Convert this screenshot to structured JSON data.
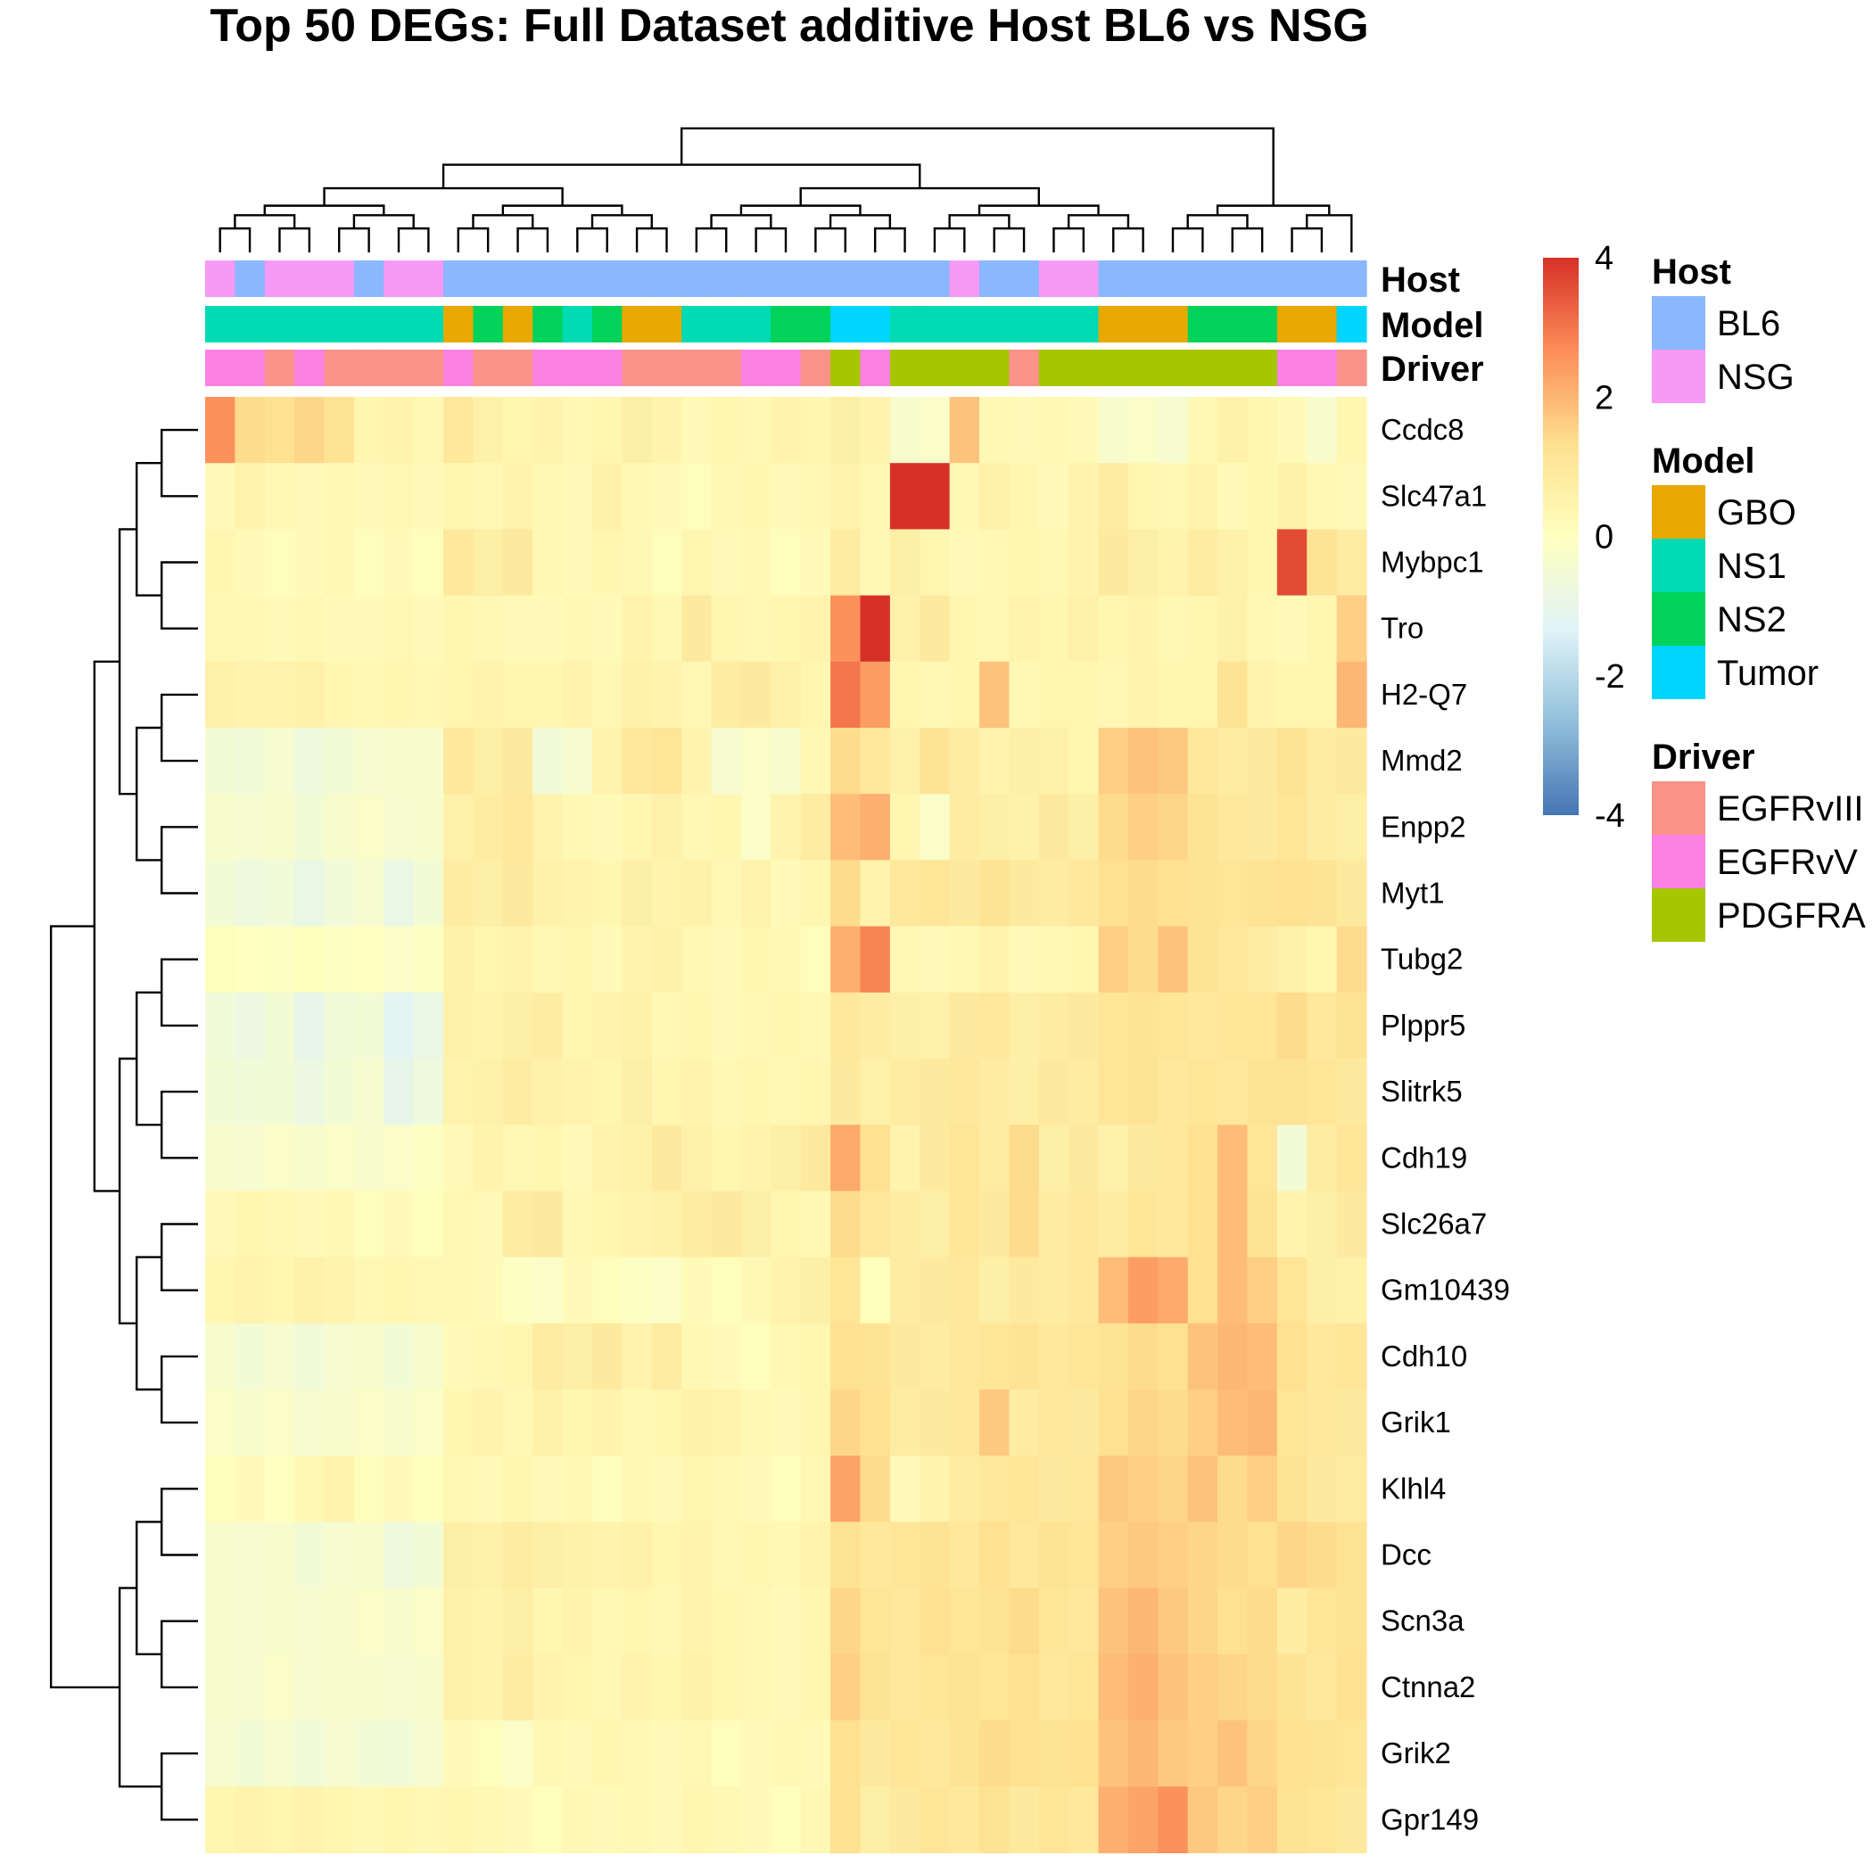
{
  "chart_data": {
    "type": "heatmap",
    "title": "Top 50 DEGs: Full Dataset additive Host BL6 vs NSG",
    "genes": [
      "Ccdc8",
      "Slc47a1",
      "Mybpc1",
      "Tro",
      "H2-Q7",
      "Mmd2",
      "Enpp2",
      "Myt1",
      "Tubg2",
      "Plppr5",
      "Slitrk5",
      "Cdh19",
      "Slc26a7",
      "Gm10439",
      "Cdh10",
      "Grik1",
      "Klhl4",
      "Dcc",
      "Scn3a",
      "Ctnna2",
      "Grik2",
      "Gpr149"
    ],
    "annotation_rows": [
      "Host",
      "Model",
      "Driver"
    ],
    "sample_annotations": {
      "Host": [
        "NSG",
        "BL6",
        "NSG",
        "NSG",
        "NSG",
        "BL6",
        "NSG",
        "NSG",
        "BL6",
        "BL6",
        "BL6",
        "BL6",
        "BL6",
        "BL6",
        "BL6",
        "BL6",
        "BL6",
        "BL6",
        "BL6",
        "BL6",
        "BL6",
        "BL6",
        "BL6",
        "BL6",
        "BL6",
        "NSG",
        "BL6",
        "BL6",
        "NSG",
        "NSG",
        "BL6",
        "BL6",
        "BL6",
        "BL6",
        "BL6",
        "BL6",
        "BL6",
        "BL6",
        "BL6"
      ],
      "Model": [
        "NS1",
        "NS1",
        "NS1",
        "NS1",
        "NS1",
        "NS1",
        "NS1",
        "NS1",
        "GBO",
        "NS2",
        "GBO",
        "NS2",
        "NS1",
        "NS2",
        "GBO",
        "GBO",
        "NS1",
        "NS1",
        "NS1",
        "NS2",
        "NS2",
        "Tumor",
        "Tumor",
        "NS1",
        "NS1",
        "NS1",
        "NS1",
        "NS1",
        "NS1",
        "NS1",
        "GBO",
        "GBO",
        "GBO",
        "NS2",
        "NS2",
        "NS2",
        "GBO",
        "GBO",
        "Tumor"
      ],
      "Driver": [
        "EGFRvV",
        "EGFRvV",
        "EGFRvIII",
        "EGFRvV",
        "EGFRvIII",
        "EGFRvIII",
        "EGFRvIII",
        "EGFRvIII",
        "EGFRvV",
        "EGFRvIII",
        "EGFRvIII",
        "EGFRvV",
        "EGFRvV",
        "EGFRvV",
        "EGFRvIII",
        "EGFRvIII",
        "EGFRvIII",
        "EGFRvIII",
        "EGFRvV",
        "EGFRvV",
        "EGFRvIII",
        "PDGFRA",
        "EGFRvV",
        "PDGFRA",
        "PDGFRA",
        "PDGFRA",
        "PDGFRA",
        "EGFRvIII",
        "PDGFRA",
        "PDGFRA",
        "PDGFRA",
        "PDGFRA",
        "PDGFRA",
        "PDGFRA",
        "PDGFRA",
        "PDGFRA",
        "EGFRvV",
        "EGFRvV",
        "EGFRvIII"
      ]
    },
    "values": [
      [
        2.6,
        1.4,
        1.3,
        1.5,
        1.2,
        0.4,
        0.5,
        0.3,
        1.0,
        0.6,
        0.4,
        0.5,
        0.3,
        0.4,
        0.7,
        0.5,
        0.2,
        0.4,
        0.3,
        0.5,
        0.4,
        0.7,
        0.5,
        -0.3,
        -0.2,
        1.8,
        0.3,
        0.2,
        0.3,
        0.2,
        -0.3,
        -0.2,
        -0.4,
        0.3,
        0.6,
        0.4,
        0.2,
        -0.3,
        0.4
      ],
      [
        0.2,
        0.5,
        0.3,
        0.2,
        0.3,
        0.2,
        0.3,
        0.2,
        0.4,
        0.3,
        0.5,
        0.3,
        0.2,
        0.6,
        0.3,
        0.2,
        0.1,
        0.3,
        0.4,
        0.2,
        0.3,
        0.5,
        0.3,
        4.0,
        4.2,
        0.3,
        0.6,
        0.4,
        0.2,
        0.5,
        0.8,
        0.4,
        0.3,
        0.5,
        0.2,
        0.4,
        0.6,
        0.3,
        0.2
      ],
      [
        0.4,
        0.2,
        0.1,
        0.2,
        0.3,
        0.1,
        0.2,
        0.1,
        1.0,
        0.7,
        0.9,
        0.3,
        0.2,
        0.4,
        0.3,
        0.1,
        0.4,
        0.2,
        0.3,
        0.1,
        0.2,
        0.8,
        0.3,
        0.7,
        0.4,
        0.2,
        0.3,
        0.4,
        0.3,
        0.5,
        0.9,
        0.7,
        0.5,
        0.8,
        0.6,
        0.4,
        3.6,
        1.2,
        0.8
      ],
      [
        0.3,
        0.3,
        0.2,
        0.3,
        0.2,
        0.2,
        0.3,
        0.2,
        0.4,
        0.3,
        0.2,
        0.2,
        0.3,
        0.2,
        0.5,
        0.3,
        0.9,
        0.4,
        0.3,
        0.4,
        0.5,
        2.6,
        4.4,
        0.6,
        0.9,
        0.4,
        0.3,
        0.5,
        0.4,
        0.6,
        0.4,
        0.5,
        0.3,
        0.4,
        0.6,
        0.3,
        0.2,
        0.4,
        1.6
      ],
      [
        0.6,
        0.5,
        0.5,
        0.6,
        0.4,
        0.3,
        0.4,
        0.3,
        0.4,
        0.5,
        0.4,
        0.4,
        0.5,
        0.3,
        0.6,
        0.5,
        0.3,
        0.8,
        0.9,
        0.6,
        0.4,
        3.0,
        2.4,
        0.4,
        0.3,
        0.4,
        1.8,
        0.3,
        0.4,
        0.4,
        0.3,
        0.5,
        0.4,
        0.4,
        1.2,
        0.5,
        0.4,
        0.4,
        2.0
      ],
      [
        -0.5,
        -0.6,
        -0.4,
        -0.7,
        -0.5,
        -0.4,
        -0.3,
        -0.3,
        1.0,
        0.7,
        0.9,
        -0.6,
        -0.4,
        0.5,
        1.0,
        1.1,
        0.5,
        -0.4,
        -0.2,
        -0.3,
        0.3,
        1.4,
        1.0,
        0.6,
        1.2,
        0.8,
        0.5,
        0.7,
        0.6,
        0.4,
        1.6,
        1.8,
        1.7,
        1.0,
        0.8,
        0.9,
        1.2,
        0.8,
        0.9
      ],
      [
        -0.3,
        -0.4,
        -0.3,
        -0.5,
        -0.3,
        -0.2,
        -0.4,
        -0.3,
        0.6,
        0.8,
        1.0,
        0.5,
        0.3,
        0.2,
        0.4,
        0.6,
        0.3,
        0.4,
        -0.2,
        0.5,
        0.8,
        1.9,
        2.1,
        0.4,
        -0.2,
        0.8,
        0.7,
        0.6,
        0.9,
        0.7,
        1.4,
        1.6,
        1.5,
        1.2,
        1.0,
        0.9,
        1.1,
        0.8,
        0.7
      ],
      [
        -0.5,
        -0.7,
        -0.6,
        -0.9,
        -0.6,
        -0.4,
        -0.9,
        -0.5,
        0.8,
        0.7,
        0.9,
        0.6,
        0.5,
        0.4,
        0.7,
        0.5,
        0.6,
        0.3,
        0.5,
        0.2,
        0.4,
        1.4,
        0.5,
        1.0,
        1.1,
        0.9,
        1.2,
        0.9,
        0.8,
        1.0,
        1.3,
        1.4,
        1.3,
        1.2,
        1.1,
        1.2,
        1.3,
        1.2,
        0.9
      ],
      [
        0.1,
        0.0,
        -0.1,
        0.1,
        -0.1,
        0.0,
        -0.2,
        -0.1,
        0.6,
        0.4,
        0.5,
        0.3,
        0.4,
        0.2,
        0.5,
        0.6,
        0.3,
        0.2,
        0.4,
        0.3,
        0.1,
        2.1,
        2.8,
        0.3,
        0.2,
        0.3,
        0.5,
        0.2,
        0.3,
        0.4,
        1.6,
        1.4,
        1.8,
        1.2,
        1.0,
        0.8,
        0.6,
        0.4,
        1.4
      ],
      [
        -0.6,
        -0.8,
        -0.5,
        -1.0,
        -0.6,
        -0.5,
        -1.2,
        -0.9,
        0.6,
        0.5,
        0.7,
        0.8,
        0.4,
        0.5,
        0.6,
        0.3,
        0.4,
        0.2,
        0.3,
        0.4,
        0.3,
        1.0,
        0.8,
        0.7,
        0.6,
        0.9,
        1.0,
        0.7,
        0.8,
        0.9,
        1.1,
        1.2,
        1.1,
        1.0,
        1.1,
        1.1,
        1.4,
        1.0,
        1.2
      ],
      [
        -0.5,
        -0.6,
        -0.5,
        -0.8,
        -0.5,
        -0.4,
        -1.0,
        -0.7,
        0.5,
        0.6,
        0.8,
        0.6,
        0.5,
        0.4,
        0.7,
        0.4,
        0.5,
        0.3,
        0.4,
        0.3,
        0.4,
        0.9,
        0.6,
        0.8,
        0.9,
        1.0,
        0.8,
        0.7,
        0.9,
        0.8,
        1.1,
        1.2,
        1.0,
        1.1,
        1.0,
        1.2,
        1.2,
        1.1,
        0.9
      ],
      [
        -0.3,
        -0.4,
        -0.2,
        -0.3,
        -0.2,
        -0.3,
        -0.2,
        -0.1,
        0.2,
        0.5,
        0.3,
        0.4,
        0.2,
        0.5,
        0.6,
        0.9,
        0.6,
        0.4,
        0.5,
        0.7,
        0.9,
        2.2,
        1.3,
        0.5,
        0.9,
        1.1,
        0.8,
        1.4,
        0.7,
        0.9,
        0.6,
        0.9,
        1.0,
        1.3,
        1.9,
        1.1,
        -0.5,
        0.8,
        1.1
      ],
      [
        0.2,
        0.4,
        0.3,
        0.2,
        0.3,
        0.1,
        0.2,
        0.1,
        0.3,
        0.2,
        0.8,
        0.9,
        0.3,
        0.4,
        0.5,
        0.6,
        0.8,
        0.9,
        0.7,
        0.4,
        0.3,
        1.4,
        1.0,
        0.8,
        0.7,
        1.1,
        0.9,
        1.4,
        0.8,
        1.0,
        0.8,
        1.1,
        1.0,
        1.3,
        1.9,
        1.2,
        0.5,
        0.7,
        0.9
      ],
      [
        0.4,
        0.5,
        0.4,
        0.6,
        0.5,
        0.3,
        0.4,
        0.3,
        0.3,
        0.2,
        -0.1,
        -0.2,
        0.2,
        0.1,
        -0.1,
        -0.2,
        0.2,
        0.1,
        0.3,
        0.5,
        0.7,
        1.1,
        0.1,
        0.8,
        0.9,
        1.0,
        0.7,
        0.9,
        0.8,
        1.0,
        1.9,
        2.4,
        2.2,
        1.3,
        1.9,
        1.6,
        1.1,
        0.7,
        0.6
      ],
      [
        -0.3,
        -0.5,
        -0.4,
        -0.6,
        -0.4,
        -0.3,
        -0.5,
        -0.3,
        0.2,
        0.3,
        0.4,
        0.8,
        0.7,
        0.9,
        0.5,
        0.8,
        0.3,
        0.2,
        0.1,
        0.3,
        0.4,
        1.3,
        1.2,
        0.9,
        0.8,
        1.0,
        1.1,
        1.2,
        1.0,
        1.1,
        1.2,
        1.4,
        1.3,
        1.8,
        2.0,
        1.9,
        1.3,
        1.0,
        1.1
      ],
      [
        -0.2,
        -0.3,
        -0.2,
        -0.4,
        -0.3,
        -0.2,
        -0.3,
        -0.2,
        0.4,
        0.5,
        0.3,
        0.6,
        0.4,
        0.5,
        0.3,
        0.4,
        0.6,
        0.5,
        0.3,
        0.2,
        0.4,
        1.5,
        1.3,
        0.8,
        0.9,
        1.0,
        1.7,
        0.8,
        1.0,
        0.9,
        1.3,
        1.5,
        1.4,
        1.6,
        1.9,
        2.0,
        1.1,
        1.0,
        0.9
      ],
      [
        0.1,
        0.2,
        0.0,
        0.3,
        0.5,
        0.1,
        0.2,
        0.1,
        0.3,
        0.2,
        0.4,
        0.2,
        0.3,
        0.1,
        0.3,
        0.2,
        0.4,
        0.3,
        0.2,
        0.1,
        0.3,
        2.3,
        1.4,
        0.2,
        0.5,
        0.8,
        1.0,
        1.1,
        0.9,
        1.0,
        1.7,
        1.6,
        1.5,
        1.8,
        1.4,
        1.6,
        1.2,
        0.9,
        0.8
      ],
      [
        -0.3,
        -0.4,
        -0.3,
        -0.5,
        -0.4,
        -0.3,
        -0.7,
        -0.5,
        0.7,
        0.6,
        0.8,
        0.7,
        0.6,
        0.5,
        0.6,
        0.4,
        0.5,
        0.3,
        0.4,
        0.3,
        0.5,
        1.2,
        1.0,
        1.1,
        1.2,
        1.0,
        1.3,
        1.0,
        1.2,
        1.1,
        1.6,
        1.7,
        1.6,
        1.5,
        1.4,
        1.3,
        1.5,
        1.4,
        1.2
      ],
      [
        -0.3,
        -0.4,
        -0.3,
        -0.4,
        -0.3,
        -0.2,
        -0.3,
        -0.2,
        0.6,
        0.5,
        0.7,
        0.4,
        0.5,
        0.3,
        0.4,
        0.3,
        0.5,
        0.4,
        0.3,
        0.2,
        0.4,
        1.5,
        1.1,
        1.0,
        1.3,
        1.1,
        1.2,
        1.4,
        1.1,
        1.0,
        1.8,
        2.0,
        1.7,
        1.5,
        1.3,
        1.4,
        0.8,
        1.1,
        1.2
      ],
      [
        -0.3,
        -0.4,
        -0.2,
        -0.4,
        -0.3,
        -0.3,
        -0.4,
        -0.3,
        0.6,
        0.5,
        0.8,
        0.5,
        0.4,
        0.3,
        0.5,
        0.4,
        0.6,
        0.4,
        0.3,
        0.2,
        0.4,
        1.6,
        1.2,
        1.0,
        1.1,
        1.2,
        1.1,
        1.3,
        1.0,
        1.1,
        1.9,
        2.1,
        1.8,
        1.6,
        1.5,
        1.4,
        1.2,
        1.0,
        1.3
      ],
      [
        -0.4,
        -0.5,
        -0.4,
        -0.6,
        -0.4,
        -0.5,
        -0.6,
        -0.4,
        0.2,
        0.1,
        -0.2,
        0.3,
        0.2,
        0.4,
        0.3,
        0.2,
        0.3,
        0.1,
        0.2,
        0.3,
        0.2,
        1.3,
        0.9,
        1.1,
        1.0,
        1.2,
        1.4,
        1.3,
        1.2,
        1.3,
        1.8,
        2.0,
        1.7,
        1.6,
        1.8,
        1.5,
        1.3,
        1.2,
        1.1
      ],
      [
        0.4,
        0.5,
        0.4,
        0.5,
        0.4,
        0.3,
        0.4,
        0.3,
        0.4,
        0.3,
        0.2,
        0.1,
        0.3,
        0.2,
        0.3,
        0.2,
        0.4,
        0.3,
        0.2,
        0.1,
        0.3,
        1.3,
        0.7,
        0.9,
        1.1,
        1.0,
        1.2,
        0.9,
        1.1,
        1.0,
        2.1,
        2.3,
        2.6,
        1.7,
        1.5,
        1.6,
        1.2,
        1.1,
        0.9
      ]
    ],
    "color_scale": {
      "min": -4,
      "max": 4,
      "ticks": [
        4,
        2,
        0,
        -2,
        -4
      ],
      "colors": [
        "#4575b4",
        "#91bfdb",
        "#e0f3f8",
        "#ffffbf",
        "#fee090",
        "#fc8d59",
        "#d73027"
      ]
    },
    "legends": [
      {
        "title": "Host",
        "items": [
          {
            "label": "BL6",
            "color": "#8bb7ff"
          },
          {
            "label": "NSG",
            "color": "#f69af5"
          }
        ]
      },
      {
        "title": "Model",
        "items": [
          {
            "label": "GBO",
            "color": "#e9a800"
          },
          {
            "label": "NS1",
            "color": "#00dbb3"
          },
          {
            "label": "NS2",
            "color": "#00d25a"
          },
          {
            "label": "Tumor",
            "color": "#00d5ff"
          }
        ]
      },
      {
        "title": "Driver",
        "items": [
          {
            "label": "EGFRvIII",
            "color": "#f9938a"
          },
          {
            "label": "EGFRvV",
            "color": "#fc81e3"
          },
          {
            "label": "PDGFRA",
            "color": "#a6c600"
          }
        ]
      }
    ]
  }
}
